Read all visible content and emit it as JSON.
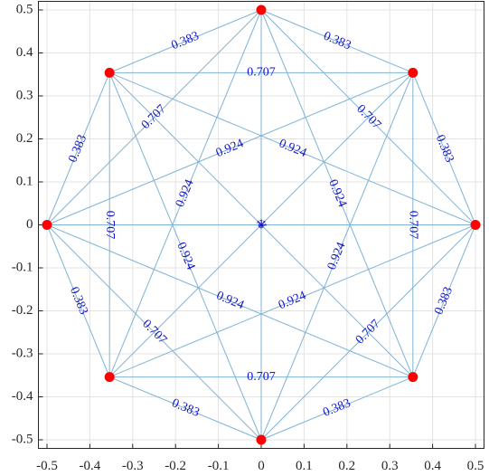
{
  "chart_data": {
    "type": "graph",
    "x": [
      0.5,
      0.354,
      0,
      -0.354,
      -0.5,
      -0.354,
      0,
      0.354
    ],
    "y": [
      0,
      0.354,
      0.5,
      0.354,
      0,
      -0.354,
      -0.5,
      -0.354
    ],
    "edges": [
      {
        "source": 0,
        "target": 1,
        "weight": 0.383
      },
      {
        "source": 0,
        "target": 2,
        "weight": 0.707
      },
      {
        "source": 0,
        "target": 3,
        "weight": 0.924
      },
      {
        "source": 0,
        "target": 4,
        "weight": 1
      },
      {
        "source": 0,
        "target": 5,
        "weight": 0.924
      },
      {
        "source": 0,
        "target": 6,
        "weight": 0.707
      },
      {
        "source": 0,
        "target": 7,
        "weight": 0.383
      },
      {
        "source": 1,
        "target": 2,
        "weight": 0.383
      },
      {
        "source": 1,
        "target": 3,
        "weight": 0.707
      },
      {
        "source": 1,
        "target": 4,
        "weight": 0.924
      },
      {
        "source": 1,
        "target": 5,
        "weight": 1
      },
      {
        "source": 1,
        "target": 6,
        "weight": 0.924
      },
      {
        "source": 1,
        "target": 7,
        "weight": 0.707
      },
      {
        "source": 2,
        "target": 3,
        "weight": 0.383
      },
      {
        "source": 2,
        "target": 4,
        "weight": 0.707
      },
      {
        "source": 2,
        "target": 5,
        "weight": 0.924
      },
      {
        "source": 2,
        "target": 6,
        "weight": 1
      },
      {
        "source": 2,
        "target": 7,
        "weight": 0.924
      },
      {
        "source": 3,
        "target": 4,
        "weight": 0.383
      },
      {
        "source": 3,
        "target": 5,
        "weight": 0.707
      },
      {
        "source": 3,
        "target": 6,
        "weight": 0.924
      },
      {
        "source": 3,
        "target": 7,
        "weight": 1
      },
      {
        "source": 4,
        "target": 5,
        "weight": 0.383
      },
      {
        "source": 4,
        "target": 6,
        "weight": 0.707
      },
      {
        "source": 4,
        "target": 7,
        "weight": 0.924
      },
      {
        "source": 5,
        "target": 6,
        "weight": 0.383
      },
      {
        "source": 5,
        "target": 7,
        "weight": 0.707
      },
      {
        "source": 6,
        "target": 7,
        "weight": 0.383
      }
    ],
    "node_color": "#ff0000",
    "edge_color": "#7fb3d5",
    "label_color": "#1414c8",
    "xlim": [
      -0.52,
      0.52
    ],
    "ylim": [
      -0.52,
      0.52
    ],
    "xticks": [
      -0.5,
      -0.4,
      -0.3,
      -0.2,
      -0.1,
      0,
      0.1,
      0.2,
      0.3,
      0.4,
      0.5
    ],
    "yticks": [
      -0.5,
      -0.4,
      -0.3,
      -0.2,
      -0.1,
      0,
      0.1,
      0.2,
      0.3,
      0.4,
      0.5
    ],
    "grid": true
  }
}
